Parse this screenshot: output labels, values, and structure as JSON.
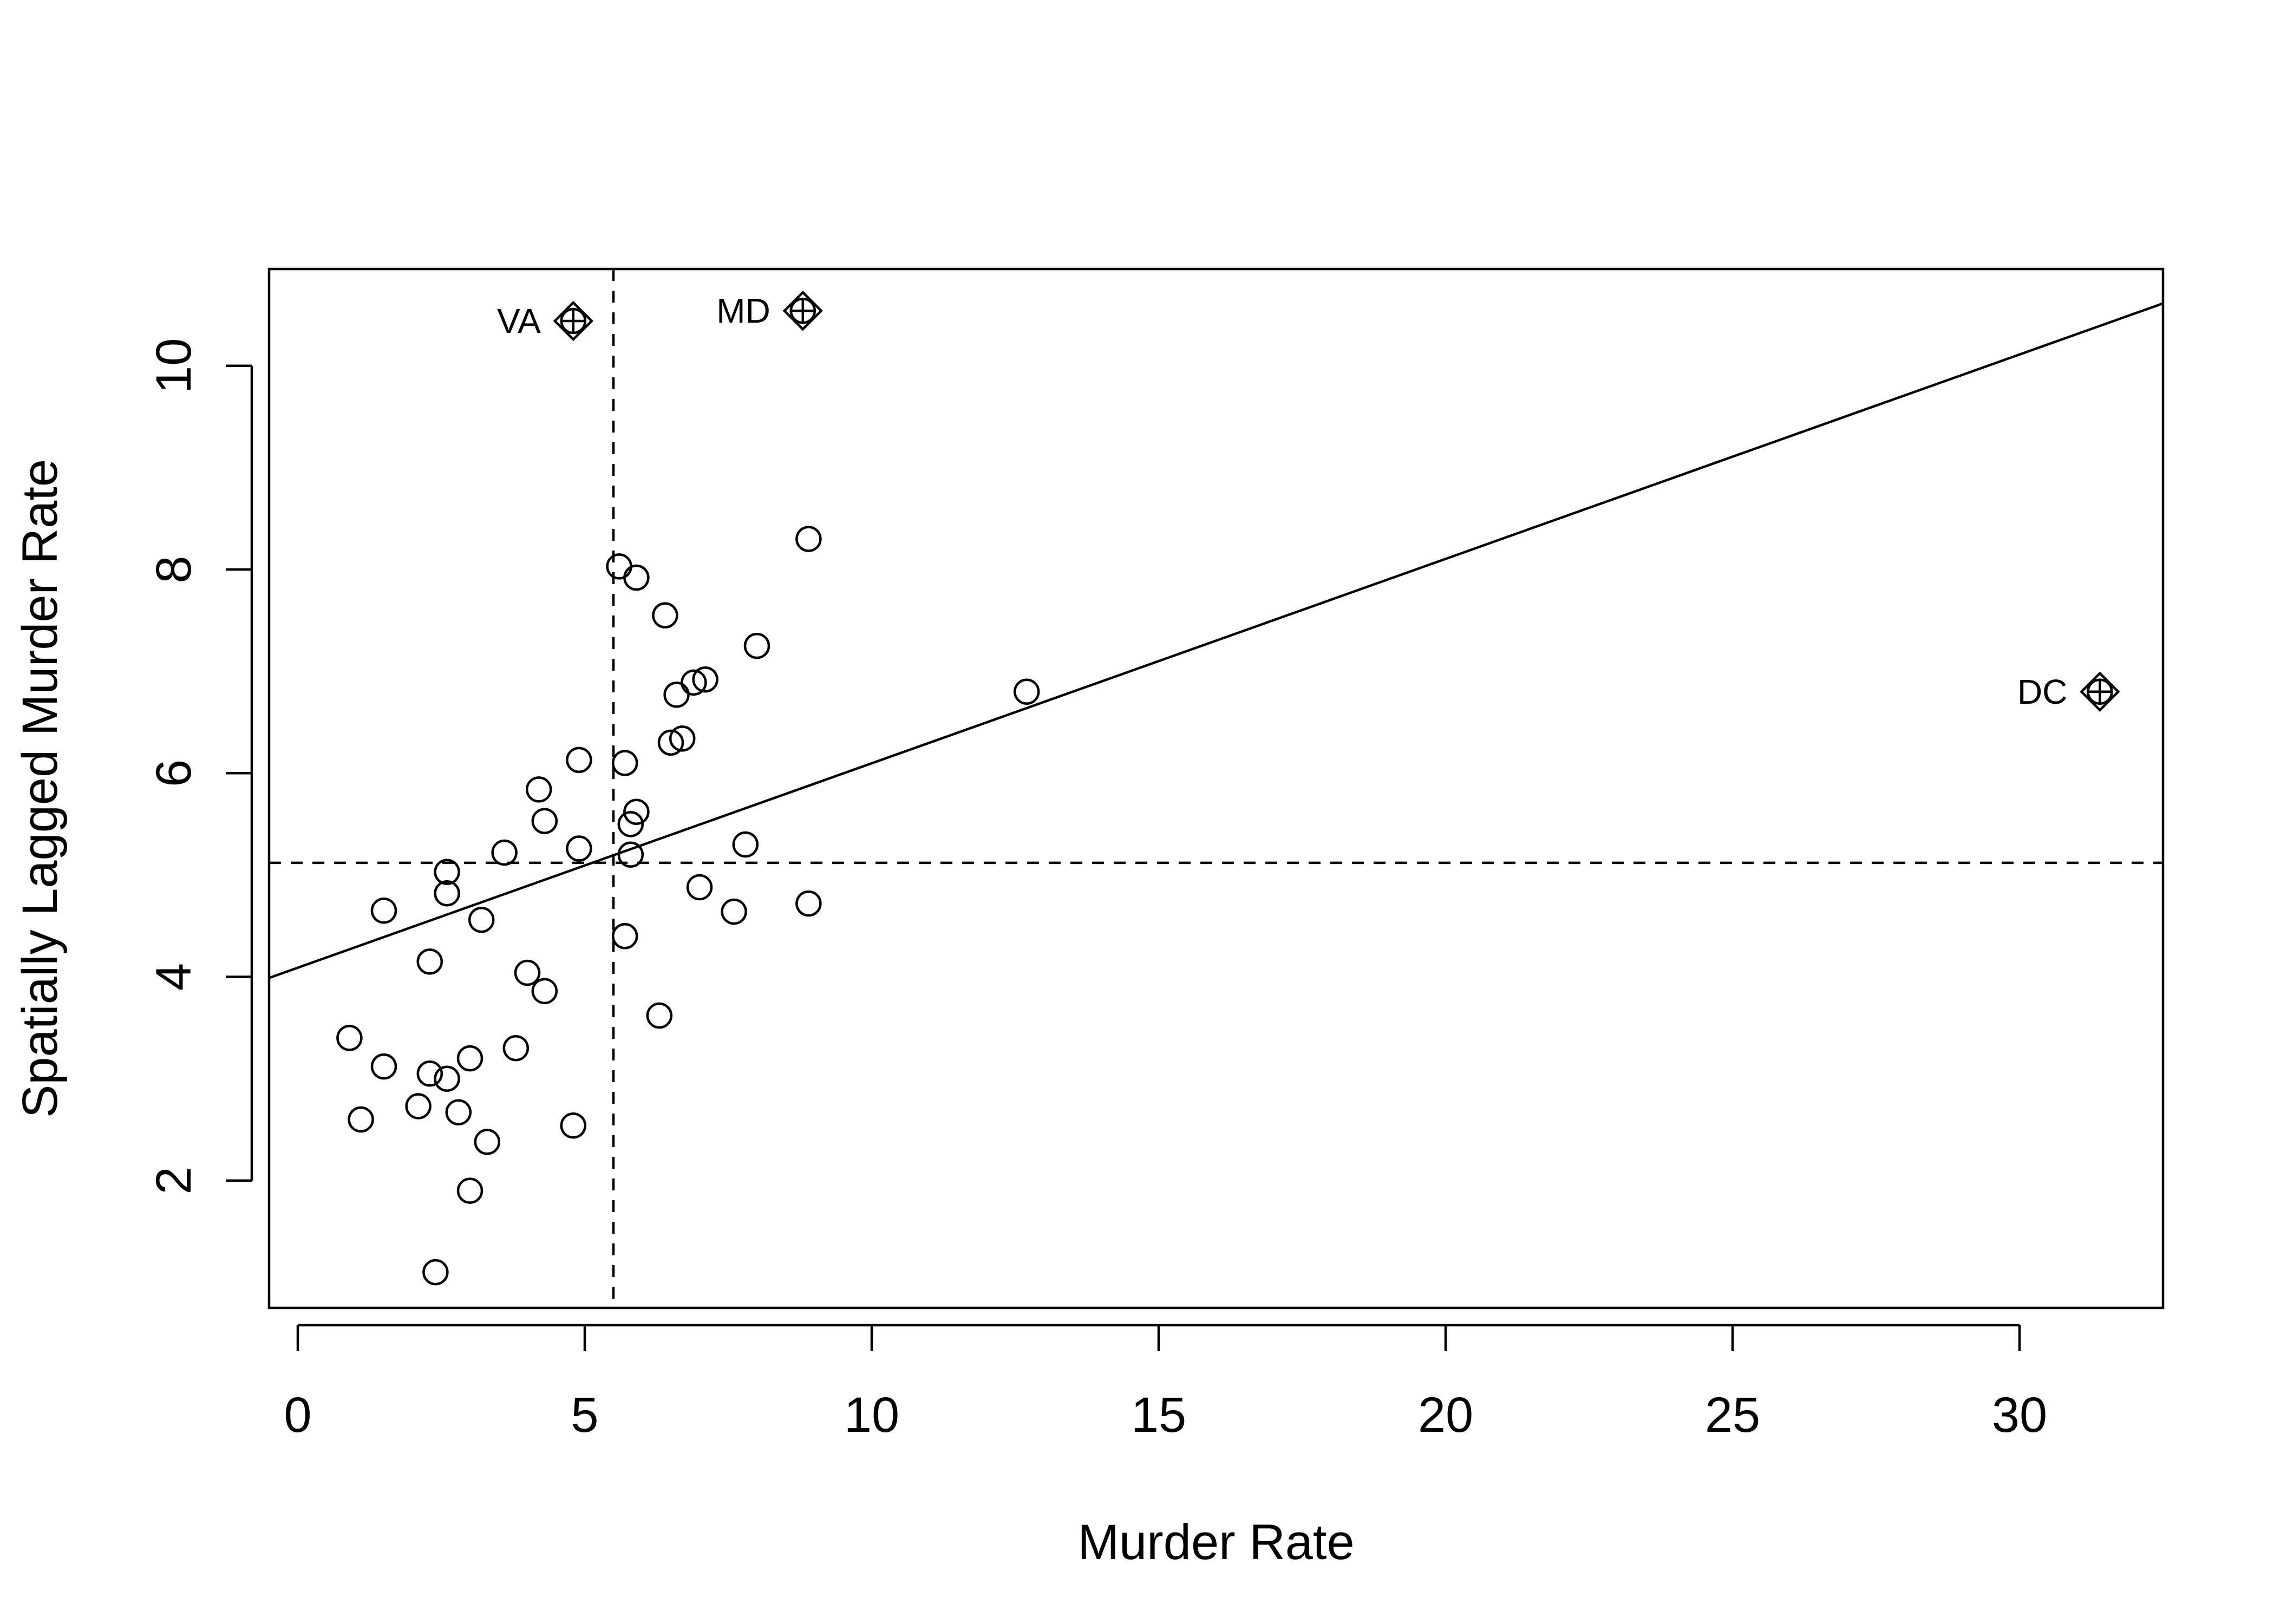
{
  "chart_data": {
    "type": "scatter",
    "title": "",
    "xlabel": "Murder Rate",
    "ylabel": "Spatially Lagged Murder Rate",
    "xlim": [
      -0.5,
      32.5
    ],
    "ylim": [
      0.75,
      10.95
    ],
    "x_ticks": [
      0,
      5,
      10,
      15,
      20,
      25,
      30
    ],
    "y_ticks": [
      2,
      4,
      6,
      8,
      10
    ],
    "grid": false,
    "legend": "none",
    "regression_line": {
      "intercept": 4.09,
      "slope": 0.2007
    },
    "mean_lines": {
      "x_mean": 5.5,
      "y_mean": 5.12,
      "style": "dashed"
    },
    "points": [
      {
        "x": 0.9,
        "y": 3.4
      },
      {
        "x": 1.1,
        "y": 2.6
      },
      {
        "x": 1.5,
        "y": 3.12
      },
      {
        "x": 1.5,
        "y": 4.65
      },
      {
        "x": 2.1,
        "y": 2.73
      },
      {
        "x": 2.3,
        "y": 3.05
      },
      {
        "x": 2.3,
        "y": 4.15
      },
      {
        "x": 2.6,
        "y": 3.0
      },
      {
        "x": 2.6,
        "y": 4.82
      },
      {
        "x": 2.6,
        "y": 5.03
      },
      {
        "x": 2.8,
        "y": 2.67
      },
      {
        "x": 2.4,
        "y": 1.1
      },
      {
        "x": 3.0,
        "y": 1.9
      },
      {
        "x": 3.0,
        "y": 3.2
      },
      {
        "x": 3.2,
        "y": 4.56
      },
      {
        "x": 3.3,
        "y": 2.38
      },
      {
        "x": 3.6,
        "y": 5.22
      },
      {
        "x": 3.8,
        "y": 3.3
      },
      {
        "x": 4.0,
        "y": 4.04
      },
      {
        "x": 4.2,
        "y": 5.84
      },
      {
        "x": 4.3,
        "y": 3.86
      },
      {
        "x": 4.3,
        "y": 5.53
      },
      {
        "x": 4.8,
        "y": 2.54
      },
      {
        "x": 4.9,
        "y": 5.26
      },
      {
        "x": 4.9,
        "y": 6.13
      },
      {
        "x": 5.6,
        "y": 8.03
      },
      {
        "x": 5.7,
        "y": 4.4
      },
      {
        "x": 5.7,
        "y": 6.1
      },
      {
        "x": 5.8,
        "y": 5.2
      },
      {
        "x": 5.8,
        "y": 5.5
      },
      {
        "x": 5.9,
        "y": 5.62
      },
      {
        "x": 5.9,
        "y": 7.92
      },
      {
        "x": 6.3,
        "y": 3.62
      },
      {
        "x": 6.4,
        "y": 7.55
      },
      {
        "x": 6.5,
        "y": 6.3
      },
      {
        "x": 6.6,
        "y": 6.77
      },
      {
        "x": 6.7,
        "y": 6.34
      },
      {
        "x": 6.9,
        "y": 6.89
      },
      {
        "x": 7.0,
        "y": 4.88
      },
      {
        "x": 7.1,
        "y": 6.92
      },
      {
        "x": 7.6,
        "y": 4.64
      },
      {
        "x": 7.8,
        "y": 5.3
      },
      {
        "x": 8.0,
        "y": 7.25
      },
      {
        "x": 8.9,
        "y": 4.72
      },
      {
        "x": 8.9,
        "y": 8.3
      },
      {
        "x": 12.7,
        "y": 6.8
      }
    ],
    "influential_points": [
      {
        "label": "VA",
        "x": 4.8,
        "y": 10.44
      },
      {
        "label": "MD",
        "x": 8.8,
        "y": 10.54
      },
      {
        "label": "DC",
        "x": 31.4,
        "y": 6.8
      }
    ]
  }
}
